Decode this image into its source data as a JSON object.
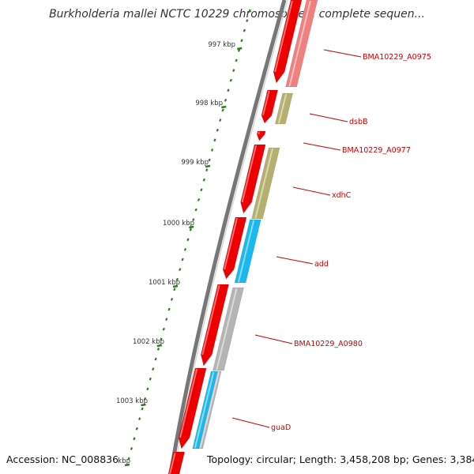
{
  "title": "Burkholderia mallei NCTC 10229 chromosome I, complete sequen...",
  "footer": {
    "accession": "Accession: NC_008836",
    "summary": "Topology: circular; Length: 3,458,208 bp; Genes: 3,384"
  },
  "colors": {
    "backbone": "#777777",
    "tick": "#2e7d1e",
    "forward_cds": "#ee0000",
    "label": "#cc0000",
    "pale_red": "#f08080",
    "olive": "#b5b070",
    "cyan": "#19b8ee",
    "gray": "#b4b4b4"
  },
  "scale": {
    "unit": "kbp",
    "major_ticks": [
      {
        "kbp": 997,
        "label": "997 kbp"
      },
      {
        "kbp": 998,
        "label": "998 kbp"
      },
      {
        "kbp": 999,
        "label": "999 kbp"
      },
      {
        "kbp": 1000,
        "label": "1000 kbp"
      },
      {
        "kbp": 1001,
        "label": "1001 kbp"
      },
      {
        "kbp": 1002,
        "label": "1002 kbp"
      },
      {
        "kbp": 1003,
        "label": "1003 kbp"
      },
      {
        "kbp": 1004,
        "label": "kbp"
      }
    ]
  },
  "gene_labels": [
    {
      "text": "BMA10229_A0975"
    },
    {
      "text": "dsbB"
    },
    {
      "text": "BMA10229_A0977"
    },
    {
      "text": "xdhC"
    },
    {
      "text": "add"
    },
    {
      "text": "BMA10229_A0980"
    },
    {
      "text": "guaD"
    }
  ]
}
